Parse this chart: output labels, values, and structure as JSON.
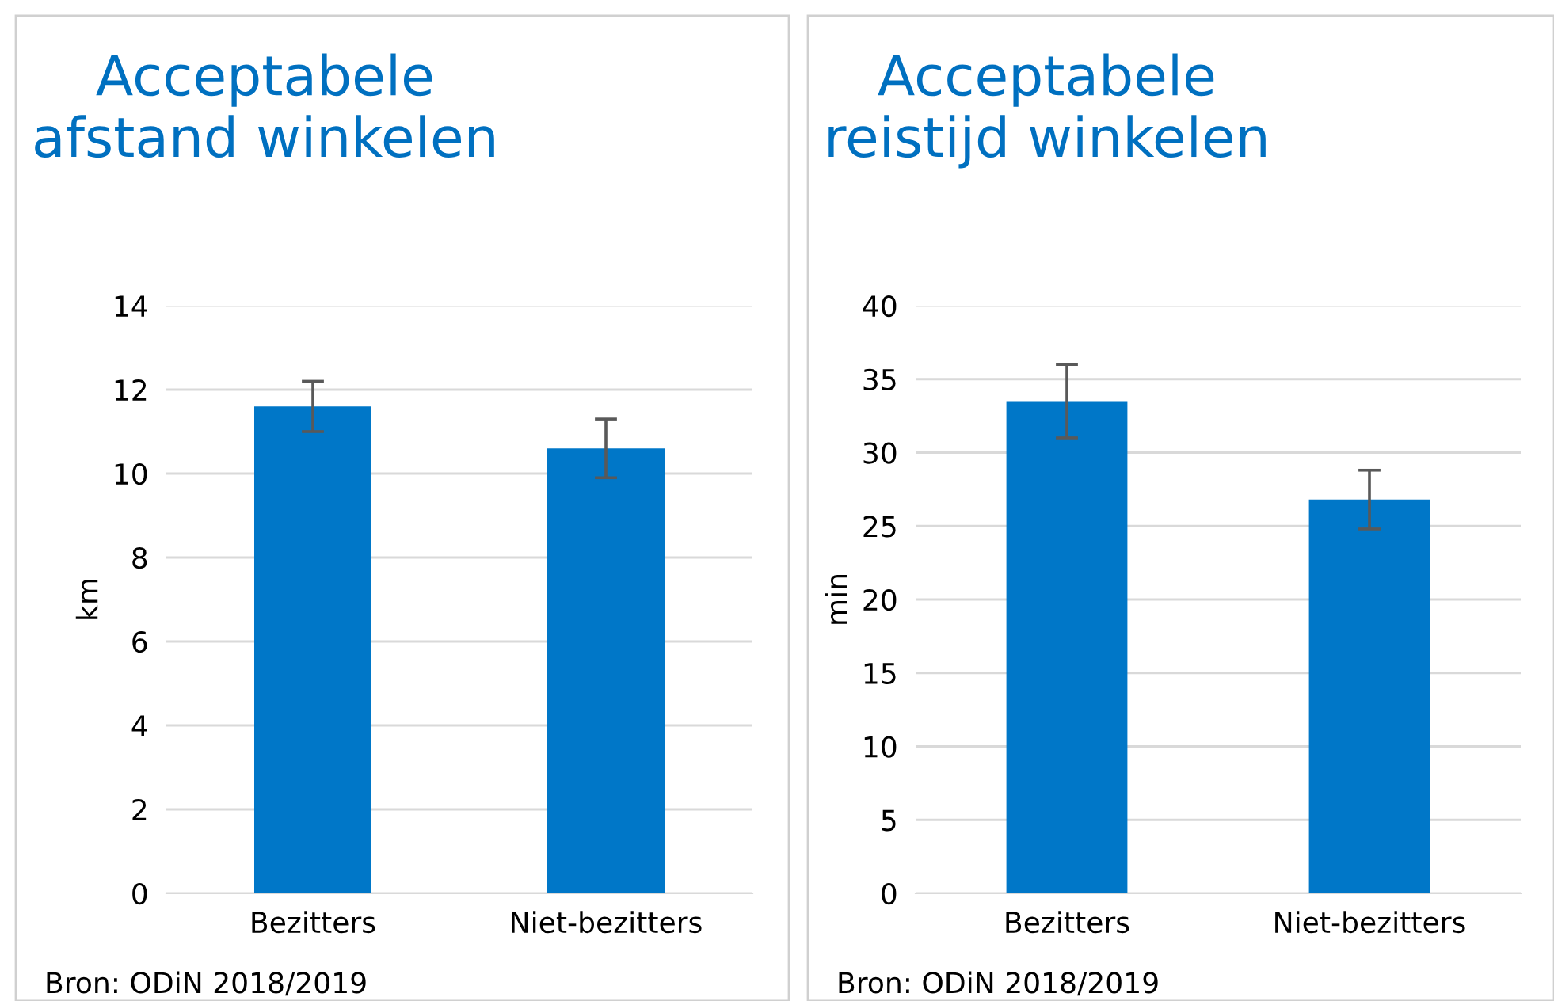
{
  "chart_data": [
    {
      "type": "bar",
      "title": "Acceptabele\nafstand winkelen",
      "ylabel": "km",
      "categories": [
        "Bezitters",
        "Niet-bezitters"
      ],
      "values": [
        11.6,
        10.6
      ],
      "errors": [
        0.6,
        0.7
      ],
      "color": "#0077c8",
      "ylim": [
        0,
        14
      ],
      "yticks": [
        0,
        2,
        4,
        6,
        8,
        10,
        12,
        14
      ],
      "grid": "y",
      "annotations": [
        "Bron: ODiN 2018/2019"
      ]
    },
    {
      "type": "bar",
      "title": "Acceptabele\nreistijd winkelen",
      "ylabel": "min",
      "categories": [
        "Bezitters",
        "Niet-bezitters"
      ],
      "values": [
        33.5,
        26.8
      ],
      "errors": [
        2.5,
        2.0
      ],
      "color": "#0077c8",
      "ylim": [
        0,
        40
      ],
      "yticks": [
        0,
        5,
        10,
        15,
        20,
        25,
        30,
        35,
        40
      ],
      "grid": "y",
      "annotations": [
        "Bron: ODiN 2018/2019"
      ]
    }
  ]
}
